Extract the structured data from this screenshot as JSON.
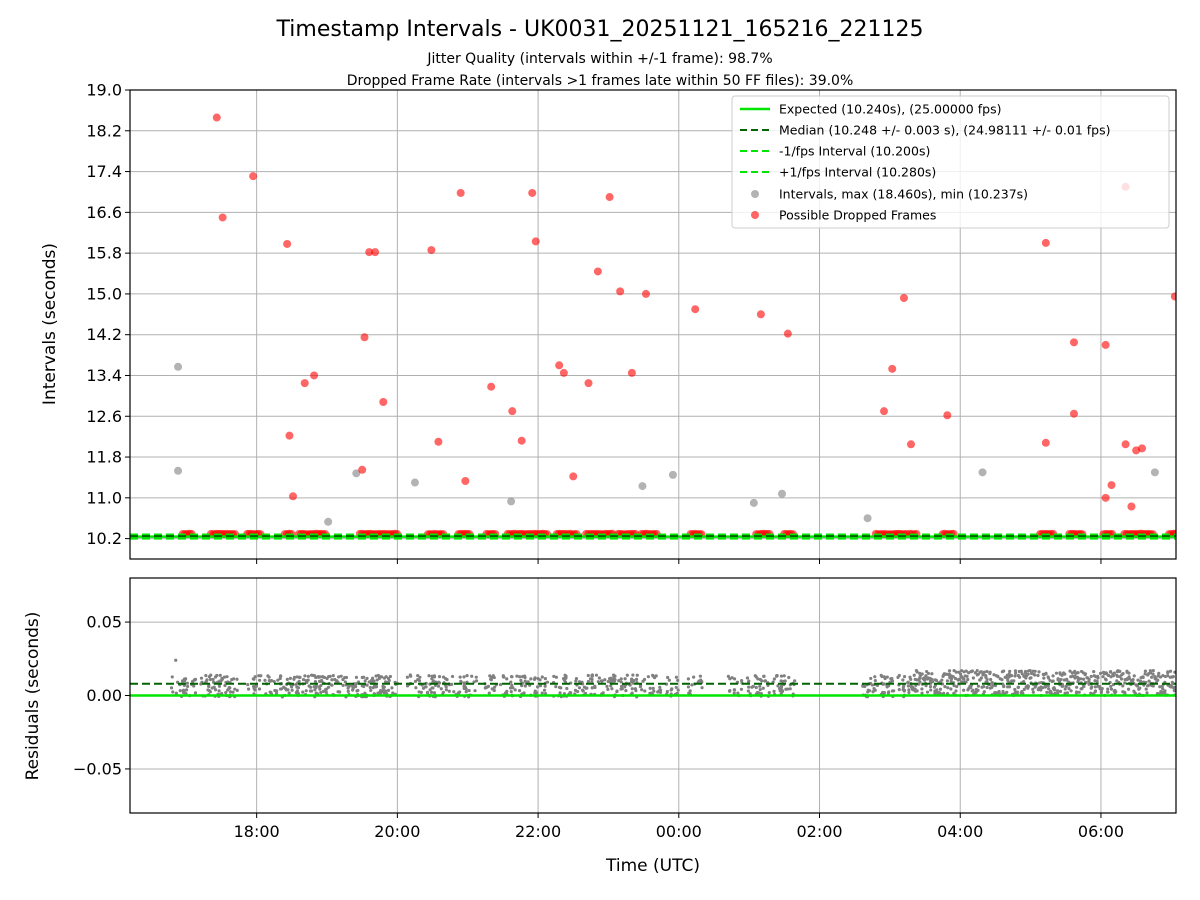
{
  "chart_data": [
    {
      "type": "scatter",
      "panel": "intervals",
      "title": "Timestamp Intervals - UK0031_20251121_165216_221125",
      "subtitle_lines": [
        "Jitter Quality (intervals within +/-1 frame): 98.7%",
        "Dropped Frame Rate (intervals >1 frames late within 50 FF files): 39.0%"
      ],
      "xlabel": "",
      "ylabel": "Intervals (seconds)",
      "xlim": [
        "2025-11-21T16:12",
        "2025-11-22T07:04"
      ],
      "ylim": [
        9.8,
        19.0
      ],
      "yticks": [
        "10.2",
        "11.0",
        "11.8",
        "12.6",
        "13.4",
        "14.2",
        "15.0",
        "15.8",
        "16.6",
        "17.4",
        "18.2",
        "19.0"
      ],
      "xticks": [
        "18:00",
        "20:00",
        "22:00",
        "00:00",
        "02:00",
        "04:00",
        "06:00"
      ],
      "xtick_times": [
        "2025-11-21T18:00",
        "2025-11-21T20:00",
        "2025-11-21T22:00",
        "2025-11-22T00:00",
        "2025-11-22T02:00",
        "2025-11-22T04:00",
        "2025-11-22T06:00"
      ],
      "grid": true,
      "legend_position": "top-right",
      "legend": [
        {
          "label": "Expected (10.240s), (25.00000 fps)",
          "style": "solid-line",
          "color": "#00e600"
        },
        {
          "label": "Median (10.248 +/- 0.003 s), (24.98111 +/- 0.01 fps)",
          "style": "dashed-line",
          "color": "#006400"
        },
        {
          "label": "-1/fps Interval (10.200s)",
          "style": "dashed-line",
          "color": "#00e600"
        },
        {
          "label": "+1/fps Interval (10.280s)",
          "style": "dashed-line",
          "color": "#00e600"
        },
        {
          "label": "Intervals, max (18.460s), min (10.237s)",
          "style": "marker",
          "color": "#808080"
        },
        {
          "label": "Possible Dropped Frames",
          "style": "marker",
          "color": "#ff0000"
        }
      ],
      "lines": {
        "expected": 10.24,
        "median": 10.248,
        "lower": 10.2,
        "upper": 10.28
      },
      "dropped_frames": [
        {
          "x": "2025-11-21T17:26",
          "y": 18.46
        },
        {
          "x": "2025-11-21T17:31",
          "y": 16.5
        },
        {
          "x": "2025-11-21T17:57",
          "y": 17.31
        },
        {
          "x": "2025-11-21T18:26",
          "y": 15.98
        },
        {
          "x": "2025-11-21T18:28",
          "y": 12.22
        },
        {
          "x": "2025-11-21T18:31",
          "y": 11.03
        },
        {
          "x": "2025-11-21T18:41",
          "y": 13.25
        },
        {
          "x": "2025-11-21T18:49",
          "y": 13.4
        },
        {
          "x": "2025-11-21T19:30",
          "y": 11.55
        },
        {
          "x": "2025-11-21T19:32",
          "y": 14.15
        },
        {
          "x": "2025-11-21T19:36",
          "y": 15.82
        },
        {
          "x": "2025-11-21T19:41",
          "y": 15.82
        },
        {
          "x": "2025-11-21T19:48",
          "y": 12.88
        },
        {
          "x": "2025-11-21T20:29",
          "y": 15.86
        },
        {
          "x": "2025-11-21T20:35",
          "y": 12.1
        },
        {
          "x": "2025-11-21T20:54",
          "y": 16.98
        },
        {
          "x": "2025-11-21T20:58",
          "y": 11.33
        },
        {
          "x": "2025-11-21T21:20",
          "y": 13.18
        },
        {
          "x": "2025-11-21T21:38",
          "y": 12.7
        },
        {
          "x": "2025-11-21T21:46",
          "y": 12.12
        },
        {
          "x": "2025-11-21T21:55",
          "y": 16.98
        },
        {
          "x": "2025-11-21T21:58",
          "y": 16.03
        },
        {
          "x": "2025-11-21T22:18",
          "y": 13.6
        },
        {
          "x": "2025-11-21T22:22",
          "y": 13.45
        },
        {
          "x": "2025-11-21T22:30",
          "y": 11.42
        },
        {
          "x": "2025-11-21T22:43",
          "y": 13.25
        },
        {
          "x": "2025-11-21T22:51",
          "y": 15.44
        },
        {
          "x": "2025-11-21T23:01",
          "y": 16.9
        },
        {
          "x": "2025-11-21T23:10",
          "y": 15.05
        },
        {
          "x": "2025-11-21T23:20",
          "y": 13.45
        },
        {
          "x": "2025-11-21T23:32",
          "y": 15.0
        },
        {
          "x": "2025-11-22T00:14",
          "y": 14.7
        },
        {
          "x": "2025-11-22T01:10",
          "y": 14.6
        },
        {
          "x": "2025-11-22T01:33",
          "y": 14.22
        },
        {
          "x": "2025-11-22T02:55",
          "y": 12.7
        },
        {
          "x": "2025-11-22T03:02",
          "y": 13.53
        },
        {
          "x": "2025-11-22T03:12",
          "y": 14.92
        },
        {
          "x": "2025-11-22T03:18",
          "y": 12.05
        },
        {
          "x": "2025-11-22T03:49",
          "y": 12.62
        },
        {
          "x": "2025-11-22T05:13",
          "y": 16.0
        },
        {
          "x": "2025-11-22T05:13",
          "y": 12.08
        },
        {
          "x": "2025-11-22T05:37",
          "y": 14.05
        },
        {
          "x": "2025-11-22T05:37",
          "y": 12.65
        },
        {
          "x": "2025-11-22T06:04",
          "y": 14.0
        },
        {
          "x": "2025-11-22T06:04",
          "y": 11.0
        },
        {
          "x": "2025-11-22T06:09",
          "y": 11.25
        },
        {
          "x": "2025-11-22T06:21",
          "y": 17.1
        },
        {
          "x": "2025-11-22T06:21",
          "y": 12.05
        },
        {
          "x": "2025-11-22T06:26",
          "y": 10.83
        },
        {
          "x": "2025-11-22T06:30",
          "y": 11.93
        },
        {
          "x": "2025-11-22T06:35",
          "y": 11.97
        },
        {
          "x": "2025-11-22T07:03",
          "y": 14.95
        }
      ],
      "intervals": [
        {
          "x": "2025-11-21T16:53",
          "y": 13.57
        },
        {
          "x": "2025-11-21T16:53",
          "y": 11.53
        },
        {
          "x": "2025-11-21T19:01",
          "y": 10.53
        },
        {
          "x": "2025-11-21T19:25",
          "y": 11.48
        },
        {
          "x": "2025-11-21T20:15",
          "y": 11.3
        },
        {
          "x": "2025-11-21T21:37",
          "y": 10.93
        },
        {
          "x": "2025-11-21T23:29",
          "y": 11.23
        },
        {
          "x": "2025-11-21T23:55",
          "y": 11.45
        },
        {
          "x": "2025-11-22T01:04",
          "y": 10.9
        },
        {
          "x": "2025-11-22T01:28",
          "y": 11.08
        },
        {
          "x": "2025-11-22T02:41",
          "y": 10.6
        },
        {
          "x": "2025-11-22T04:19",
          "y": 11.5
        },
        {
          "x": "2025-11-22T06:46",
          "y": 11.5
        }
      ],
      "dropped_clusters": [
        [
          "2025-11-21T16:57",
          "2025-11-21T17:05"
        ],
        [
          "2025-11-21T17:21",
          "2025-11-21T17:42"
        ],
        [
          "2025-11-21T17:52",
          "2025-11-21T18:05"
        ],
        [
          "2025-11-21T18:24",
          "2025-11-21T18:31"
        ],
        [
          "2025-11-21T18:36",
          "2025-11-21T19:00"
        ],
        [
          "2025-11-21T19:28",
          "2025-11-21T20:00"
        ],
        [
          "2025-11-21T20:26",
          "2025-11-21T20:40"
        ],
        [
          "2025-11-21T20:52",
          "2025-11-21T21:03"
        ],
        [
          "2025-11-21T21:16",
          "2025-11-21T21:24"
        ],
        [
          "2025-11-21T21:34",
          "2025-11-21T22:08"
        ],
        [
          "2025-11-21T22:16",
          "2025-11-21T22:34"
        ],
        [
          "2025-11-21T22:41",
          "2025-11-21T23:05"
        ],
        [
          "2025-11-21T23:08",
          "2025-11-21T23:24"
        ],
        [
          "2025-11-21T23:28",
          "2025-11-21T23:42"
        ],
        [
          "2025-11-22T00:10",
          "2025-11-22T00:20"
        ],
        [
          "2025-11-22T01:06",
          "2025-11-22T01:18"
        ],
        [
          "2025-11-22T01:30",
          "2025-11-22T01:39"
        ],
        [
          "2025-11-22T02:48",
          "2025-11-22T03:15"
        ],
        [
          "2025-11-22T03:17",
          "2025-11-22T03:24"
        ],
        [
          "2025-11-22T03:45",
          "2025-11-22T03:56"
        ],
        [
          "2025-11-22T05:08",
          "2025-11-22T05:20"
        ],
        [
          "2025-11-22T05:33",
          "2025-11-22T05:46"
        ],
        [
          "2025-11-22T06:02",
          "2025-11-22T06:10"
        ],
        [
          "2025-11-22T06:20",
          "2025-11-22T06:45"
        ],
        [
          "2025-11-22T06:58",
          "2025-11-22T07:04"
        ]
      ]
    },
    {
      "type": "scatter",
      "panel": "residuals",
      "xlabel": "Time (UTC)",
      "ylabel": "Residuals (seconds)",
      "xlim": [
        "2025-11-21T16:12",
        "2025-11-22T07:04"
      ],
      "ylim": [
        -0.08,
        0.08
      ],
      "yticks": [
        "−0.05",
        "0.00",
        "0.05"
      ],
      "ytick_values": [
        -0.05,
        0.0,
        0.05
      ],
      "xticks": [
        "18:00",
        "20:00",
        "22:00",
        "00:00",
        "02:00",
        "04:00",
        "06:00"
      ],
      "xtick_times": [
        "2025-11-21T18:00",
        "2025-11-21T20:00",
        "2025-11-21T22:00",
        "2025-11-22T00:00",
        "2025-11-22T02:00",
        "2025-11-22T04:00",
        "2025-11-22T06:00"
      ],
      "grid": true,
      "lines": {
        "zero": 0.0,
        "median": 0.008
      },
      "residual_outlier": {
        "x": "2025-11-21T16:51",
        "y": 0.024
      },
      "sparse_groups": [
        "2025-11-21T16:53",
        "2025-11-21T17:03",
        "2025-11-21T17:17",
        "2025-11-21T17:25",
        "2025-11-21T17:33",
        "2025-11-21T17:38",
        "2025-11-21T17:58",
        "2025-11-21T18:13",
        "2025-11-21T18:26",
        "2025-11-21T18:31",
        "2025-11-21T18:38",
        "2025-11-21T18:47",
        "2025-11-21T18:52",
        "2025-11-21T19:01",
        "2025-11-21T19:11",
        "2025-11-21T19:22",
        "2025-11-21T19:29",
        "2025-11-21T19:36",
        "2025-11-21T19:43",
        "2025-11-21T19:47",
        "2025-11-21T19:55",
        "2025-11-21T20:14",
        "2025-11-21T20:26",
        "2025-11-21T20:31",
        "2025-11-21T20:41",
        "2025-11-21T20:53",
        "2025-11-21T21:02",
        "2025-11-21T21:20",
        "2025-11-21T21:33",
        "2025-11-21T21:43",
        "2025-11-21T21:52",
        "2025-11-21T22:03",
        "2025-11-21T22:19",
        "2025-11-21T22:28",
        "2025-11-21T22:40",
        "2025-11-21T22:50",
        "2025-11-21T23:00",
        "2025-11-21T23:08",
        "2025-11-21T23:16",
        "2025-11-21T23:26",
        "2025-11-21T23:40",
        "2025-11-21T23:55",
        "2025-11-22T00:14",
        "2025-11-22T00:48",
        "2025-11-22T01:04",
        "2025-11-22T01:12",
        "2025-11-22T01:26",
        "2025-11-22T01:33",
        "2025-11-22T02:41",
        "2025-11-22T02:50",
        "2025-11-22T02:58",
        "2025-11-22T03:08"
      ],
      "dense_range": [
        "2025-11-22T03:15",
        "2025-11-22T07:04"
      ],
      "dense_band": [
        0.0,
        0.017
      ]
    }
  ],
  "colors": {
    "expected": "#00e600",
    "median": "#006400",
    "dropped": "#ff0000",
    "intervals": "#808080",
    "grid": "#b0b0b0"
  }
}
